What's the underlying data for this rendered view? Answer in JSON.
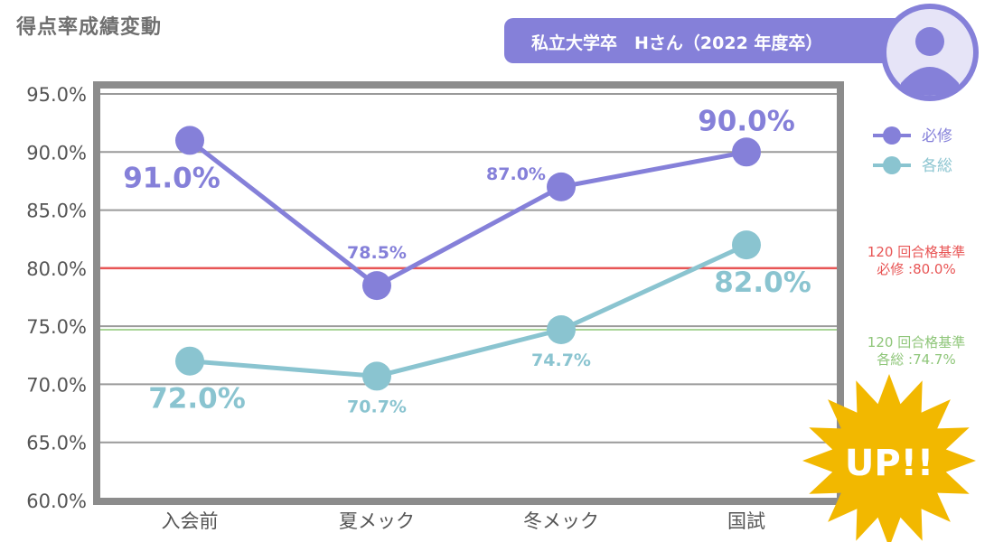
{
  "header": {
    "title": "得点率成績変動",
    "subject": "私立大学卒　Hさん（2022 年度卒）"
  },
  "colors": {
    "hisshu": "#8580d9",
    "kakuso": "#8ac4d0",
    "ref_hisshu": "#e85555",
    "ref_kakuso": "#a8d596",
    "frame": "#8c8c8c",
    "grid": "#9a9a9a",
    "burst": "#f2b800"
  },
  "chart_data": {
    "type": "line",
    "title": "得点率成績変動",
    "categories": [
      "入会前",
      "夏メック",
      "冬メック",
      "国試"
    ],
    "ylim": [
      60,
      95
    ],
    "yticks": [
      "95.0%",
      "90.0%",
      "85.0%",
      "80.0%",
      "75.0%",
      "70.0%",
      "65.0%",
      "60.0%"
    ],
    "ytick_values": [
      95,
      90,
      85,
      80,
      75,
      70,
      65,
      60
    ],
    "series": [
      {
        "name": "必修",
        "values": [
          91.0,
          78.5,
          87.0,
          90.0
        ],
        "labels": [
          "91.0%",
          "78.5%",
          "87.0%",
          "90.0%"
        ],
        "label_emphasis": [
          true,
          false,
          false,
          true
        ],
        "label_side": [
          "below",
          "above",
          "left",
          "above"
        ]
      },
      {
        "name": "各総",
        "values": [
          72.0,
          70.7,
          74.7,
          82.0
        ],
        "labels": [
          "72.0%",
          "70.7%",
          "74.7%",
          "82.0%"
        ],
        "label_emphasis": [
          true,
          false,
          false,
          true
        ],
        "label_side": [
          "below",
          "below",
          "below",
          "below"
        ]
      }
    ],
    "reference_lines": [
      {
        "series": "必修",
        "value": 80.0,
        "label_line1": "120 回合格基準",
        "label_line2": "必修 :80.0%"
      },
      {
        "series": "各総",
        "value": 74.7,
        "label_line1": "120 回合格基準",
        "label_line2": "各総 :74.7%"
      }
    ],
    "annotation": "UP!!",
    "legend": "right"
  }
}
